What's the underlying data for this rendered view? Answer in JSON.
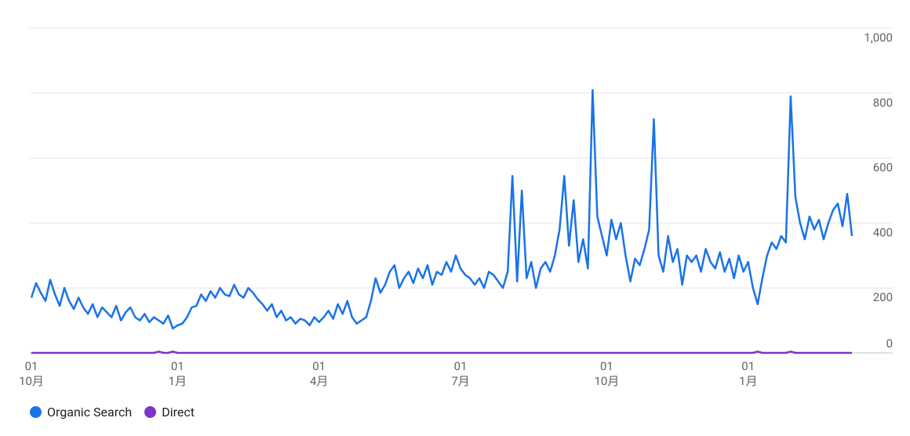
{
  "chart_data": {
    "type": "line",
    "categories": [
      "01\n10月",
      null,
      null,
      null,
      null,
      null,
      null,
      null,
      null,
      null,
      null,
      null,
      null,
      null,
      null,
      null,
      null,
      null,
      null,
      null,
      null,
      null,
      null,
      null,
      null,
      null,
      null,
      null,
      null,
      null,
      null,
      "01\n1月",
      null,
      null,
      null,
      null,
      null,
      null,
      null,
      null,
      null,
      null,
      null,
      null,
      null,
      null,
      null,
      null,
      null,
      null,
      null,
      null,
      null,
      null,
      null,
      null,
      null,
      null,
      null,
      null,
      null,
      "01\n4月",
      null,
      null,
      null,
      null,
      null,
      null,
      null,
      null,
      null,
      null,
      null,
      null,
      null,
      null,
      null,
      null,
      null,
      null,
      null,
      null,
      null,
      null,
      null,
      null,
      null,
      null,
      null,
      null,
      null,
      "01\n7月",
      null,
      null,
      null,
      null,
      null,
      null,
      null,
      null,
      null,
      null,
      null,
      null,
      null,
      null,
      null,
      null,
      null,
      null,
      null,
      null,
      null,
      null,
      null,
      null,
      null,
      null,
      null,
      null,
      null,
      null,
      "01\n10月",
      null,
      null,
      null,
      null,
      null,
      null,
      null,
      null,
      null,
      null,
      null,
      null,
      null,
      null,
      null,
      null,
      null,
      null,
      null,
      null,
      null,
      null,
      null,
      null,
      null,
      null,
      null,
      null,
      null,
      "01\n1月",
      null,
      null,
      null,
      null,
      null,
      null,
      null,
      null,
      null,
      null,
      null,
      null,
      null,
      null,
      null,
      null,
      null,
      null,
      null,
      null,
      null,
      null
    ],
    "series": [
      {
        "name": "Organic Search",
        "color": "#1a73e8",
        "values": [
          170,
          215,
          185,
          160,
          225,
          180,
          145,
          200,
          160,
          135,
          170,
          140,
          120,
          150,
          110,
          140,
          125,
          110,
          145,
          100,
          125,
          140,
          110,
          100,
          120,
          95,
          110,
          100,
          90,
          115,
          75,
          85,
          90,
          110,
          140,
          145,
          180,
          160,
          190,
          170,
          200,
          180,
          175,
          210,
          180,
          170,
          200,
          185,
          165,
          150,
          130,
          150,
          110,
          130,
          100,
          110,
          90,
          105,
          100,
          85,
          110,
          95,
          110,
          130,
          105,
          150,
          120,
          160,
          110,
          90,
          100,
          110,
          160,
          230,
          185,
          210,
          250,
          270,
          200,
          230,
          250,
          215,
          260,
          230,
          270,
          210,
          250,
          240,
          280,
          250,
          300,
          260,
          240,
          230,
          210,
          230,
          200,
          250,
          240,
          220,
          200,
          250,
          545,
          220,
          500,
          230,
          280,
          200,
          260,
          280,
          250,
          300,
          380,
          545,
          330,
          470,
          280,
          350,
          260,
          810,
          420,
          360,
          300,
          410,
          350,
          400,
          300,
          220,
          290,
          270,
          320,
          380,
          720,
          300,
          250,
          360,
          280,
          320,
          210,
          300,
          280,
          300,
          250,
          320,
          280,
          260,
          310,
          250,
          290,
          230,
          300,
          250,
          280,
          200,
          150,
          230,
          300,
          340,
          320,
          360,
          340,
          790,
          480,
          400,
          350,
          420,
          380,
          410,
          350,
          400,
          440,
          460,
          390,
          490,
          360
        ]
      },
      {
        "name": "Direct",
        "color": "#7b35c9",
        "values": [
          0,
          0,
          0,
          0,
          0,
          0,
          0,
          0,
          0,
          0,
          0,
          0,
          0,
          0,
          0,
          0,
          0,
          0,
          0,
          0,
          0,
          0,
          0,
          0,
          0,
          0,
          0,
          4,
          0,
          0,
          4,
          0,
          0,
          0,
          0,
          0,
          0,
          0,
          0,
          0,
          0,
          0,
          0,
          0,
          0,
          0,
          0,
          0,
          0,
          0,
          0,
          0,
          0,
          0,
          0,
          0,
          0,
          0,
          0,
          0,
          0,
          0,
          0,
          0,
          0,
          0,
          0,
          0,
          0,
          0,
          0,
          0,
          0,
          0,
          0,
          0,
          0,
          0,
          0,
          0,
          0,
          0,
          0,
          0,
          0,
          0,
          0,
          0,
          0,
          0,
          0,
          0,
          0,
          0,
          0,
          0,
          0,
          0,
          0,
          0,
          0,
          0,
          0,
          0,
          0,
          0,
          0,
          0,
          0,
          0,
          0,
          0,
          0,
          0,
          0,
          0,
          0,
          0,
          0,
          0,
          0,
          0,
          0,
          0,
          0,
          0,
          0,
          0,
          0,
          0,
          0,
          0,
          0,
          0,
          0,
          0,
          0,
          0,
          0,
          0,
          0,
          0,
          0,
          0,
          0,
          0,
          0,
          0,
          0,
          0,
          0,
          0,
          0,
          0,
          4,
          0,
          0,
          0,
          0,
          0,
          0,
          4,
          0,
          0,
          0,
          0,
          0,
          0,
          0,
          0,
          0,
          0,
          0,
          0,
          0
        ]
      }
    ],
    "ylim": [
      0,
      1000
    ],
    "yticks": [
      0,
      200,
      400,
      600,
      800,
      {
        "value": 1000,
        "label": "1,000"
      }
    ],
    "grid": true,
    "legend": "bottom"
  }
}
